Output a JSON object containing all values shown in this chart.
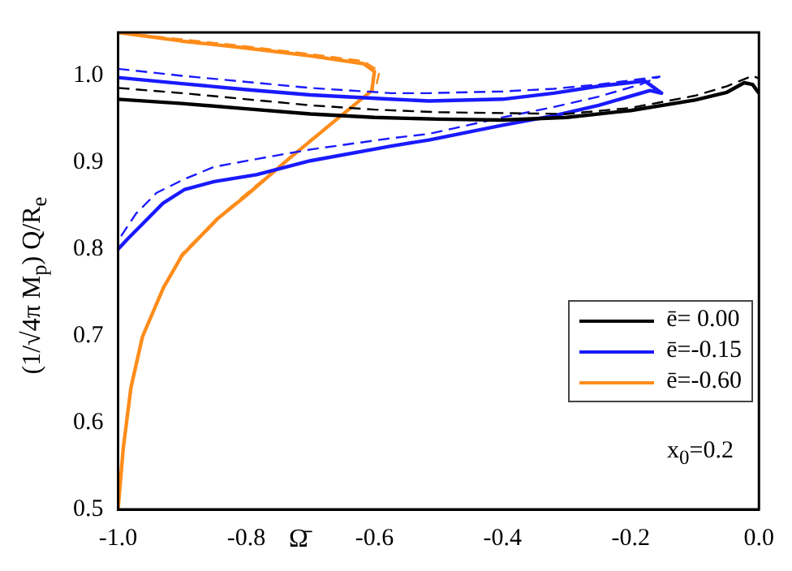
{
  "chart_data": {
    "type": "line",
    "xlabel": "Ω̄",
    "ylabel": "(1/√4π M$_{p}$) Q/R$_{e}$",
    "xlim": [
      -1.0,
      0.0
    ],
    "ylim": [
      0.5,
      1.05
    ],
    "xticks": [
      {
        "value": -1.0,
        "label": "-1.0"
      },
      -0.8,
      -0.6,
      -0.4,
      -0.2,
      {
        "value": 0.0,
        "label": "0.0"
      }
    ],
    "yticks": [
      0.5,
      0.6,
      0.7,
      0.8,
      0.9,
      {
        "value": 1.0,
        "label": "1.0"
      }
    ],
    "grid": false,
    "legend": "bottom right",
    "marker": "none",
    "annotations": [
      "x$_{0}$=0.2"
    ],
    "series": [
      {
        "name": "ē= 0.00",
        "color": "#000000",
        "line_style": "solid",
        "x": [
          -1.0,
          -0.9,
          -0.8,
          -0.7,
          -0.6,
          -0.5,
          -0.4,
          -0.3,
          -0.2,
          -0.1,
          -0.05,
          -0.023,
          -0.01,
          0.0
        ],
        "values": [
          0.973,
          0.968,
          0.962,
          0.956,
          0.952,
          0.95,
          0.949,
          0.952,
          0.96,
          0.972,
          0.981,
          0.992,
          0.99,
          0.98
        ]
      },
      {
        "color": "#000000",
        "line_style": "dashed",
        "x": [
          -1.0,
          -0.9,
          -0.8,
          -0.7,
          -0.6,
          -0.5,
          -0.4,
          -0.3,
          -0.2,
          -0.1,
          -0.05,
          -0.01,
          0.0
        ],
        "values": [
          0.986,
          0.98,
          0.973,
          0.966,
          0.961,
          0.958,
          0.957,
          0.956,
          0.963,
          0.977,
          0.988,
          1.0,
          0.997
        ]
      },
      {
        "name": "ē=-0.15",
        "color": "#1a1aff",
        "line_style": "solid",
        "x": [
          -1.0,
          -0.9,
          -0.8,
          -0.7,
          -0.574,
          -0.515,
          -0.4,
          -0.32,
          -0.25,
          -0.178,
          -0.152,
          -0.17,
          -0.25,
          -0.32,
          -0.4,
          -0.515,
          -0.574,
          -0.7,
          -0.784,
          -0.85,
          -0.896,
          -0.93,
          -0.962,
          -0.985,
          -1.0
        ],
        "values": [
          0.998,
          0.991,
          0.984,
          0.978,
          0.973,
          0.971,
          0.973,
          0.98,
          0.988,
          0.994,
          0.98,
          0.983,
          0.966,
          0.954,
          0.943,
          0.926,
          0.919,
          0.902,
          0.886,
          0.878,
          0.869,
          0.853,
          0.829,
          0.812,
          0.8
        ]
      },
      {
        "color": "#1a1aff",
        "line_style": "dashed",
        "x": [
          -1.0,
          -0.9,
          -0.8,
          -0.7,
          -0.574,
          -0.515,
          -0.4,
          -0.32,
          -0.25,
          -0.155,
          -0.185,
          -0.25,
          -0.32,
          -0.4,
          -0.515,
          -0.574,
          -0.7,
          -0.784,
          -0.85,
          -0.896,
          -0.94,
          -0.972,
          -1.0
        ],
        "values": [
          1.008,
          1.0,
          0.993,
          0.986,
          0.98,
          0.98,
          0.982,
          0.985,
          0.99,
          0.999,
          0.99,
          0.976,
          0.964,
          0.952,
          0.933,
          0.928,
          0.915,
          0.904,
          0.895,
          0.881,
          0.865,
          0.841,
          0.81
        ]
      },
      {
        "name": "ē=-0.60",
        "color": "#ff8c1a",
        "line_style": "solid",
        "x": [
          -1.0,
          -0.9,
          -0.8,
          -0.7,
          -0.617,
          -0.6,
          -0.604,
          -0.657,
          -0.734,
          -0.8,
          -0.845,
          -0.9,
          -0.929,
          -0.962,
          -0.98,
          -0.992,
          -1.0
        ],
        "values": [
          1.05,
          1.04,
          1.032,
          1.023,
          1.014,
          1.005,
          0.983,
          0.951,
          0.904,
          0.862,
          0.835,
          0.793,
          0.756,
          0.699,
          0.64,
          0.57,
          0.5
        ]
      },
      {
        "color": "#ff8c1a",
        "line_style": "dashed",
        "x": [
          -1.0,
          -0.9,
          -0.8,
          -0.7,
          -0.617,
          -0.592,
          -0.598,
          -0.655,
          -0.73,
          -0.8,
          -0.843,
          -0.9,
          -0.928,
          -0.961,
          -0.979,
          -0.991,
          -1.0
        ],
        "values": [
          1.05,
          1.042,
          1.034,
          1.025,
          1.017,
          1.005,
          0.986,
          0.953,
          0.907,
          0.864,
          0.837,
          0.795,
          0.758,
          0.701,
          0.642,
          0.572,
          0.5
        ]
      }
    ]
  }
}
